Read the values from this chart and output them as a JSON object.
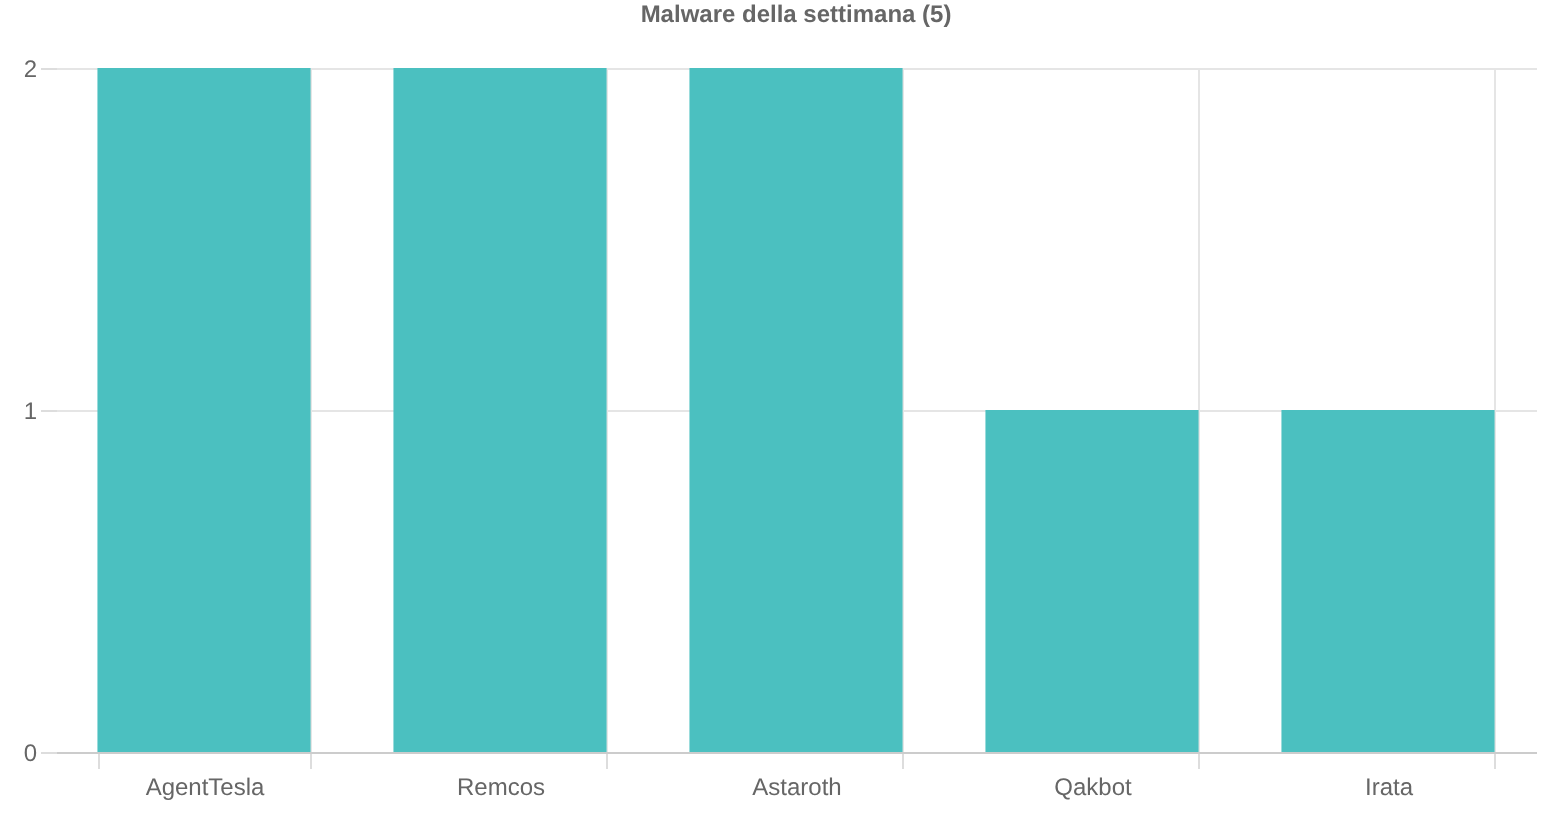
{
  "chart_data": {
    "type": "bar",
    "title": "Malware della settimana (5)",
    "categories": [
      "AgentTesla",
      "Remcos",
      "Astaroth",
      "Qakbot",
      "Irata"
    ],
    "values": [
      2,
      2,
      2,
      1,
      1
    ],
    "color": "#4bc0c0",
    "ylim": [
      0,
      2
    ],
    "yticks": [
      0,
      1,
      2
    ],
    "grid": true
  }
}
